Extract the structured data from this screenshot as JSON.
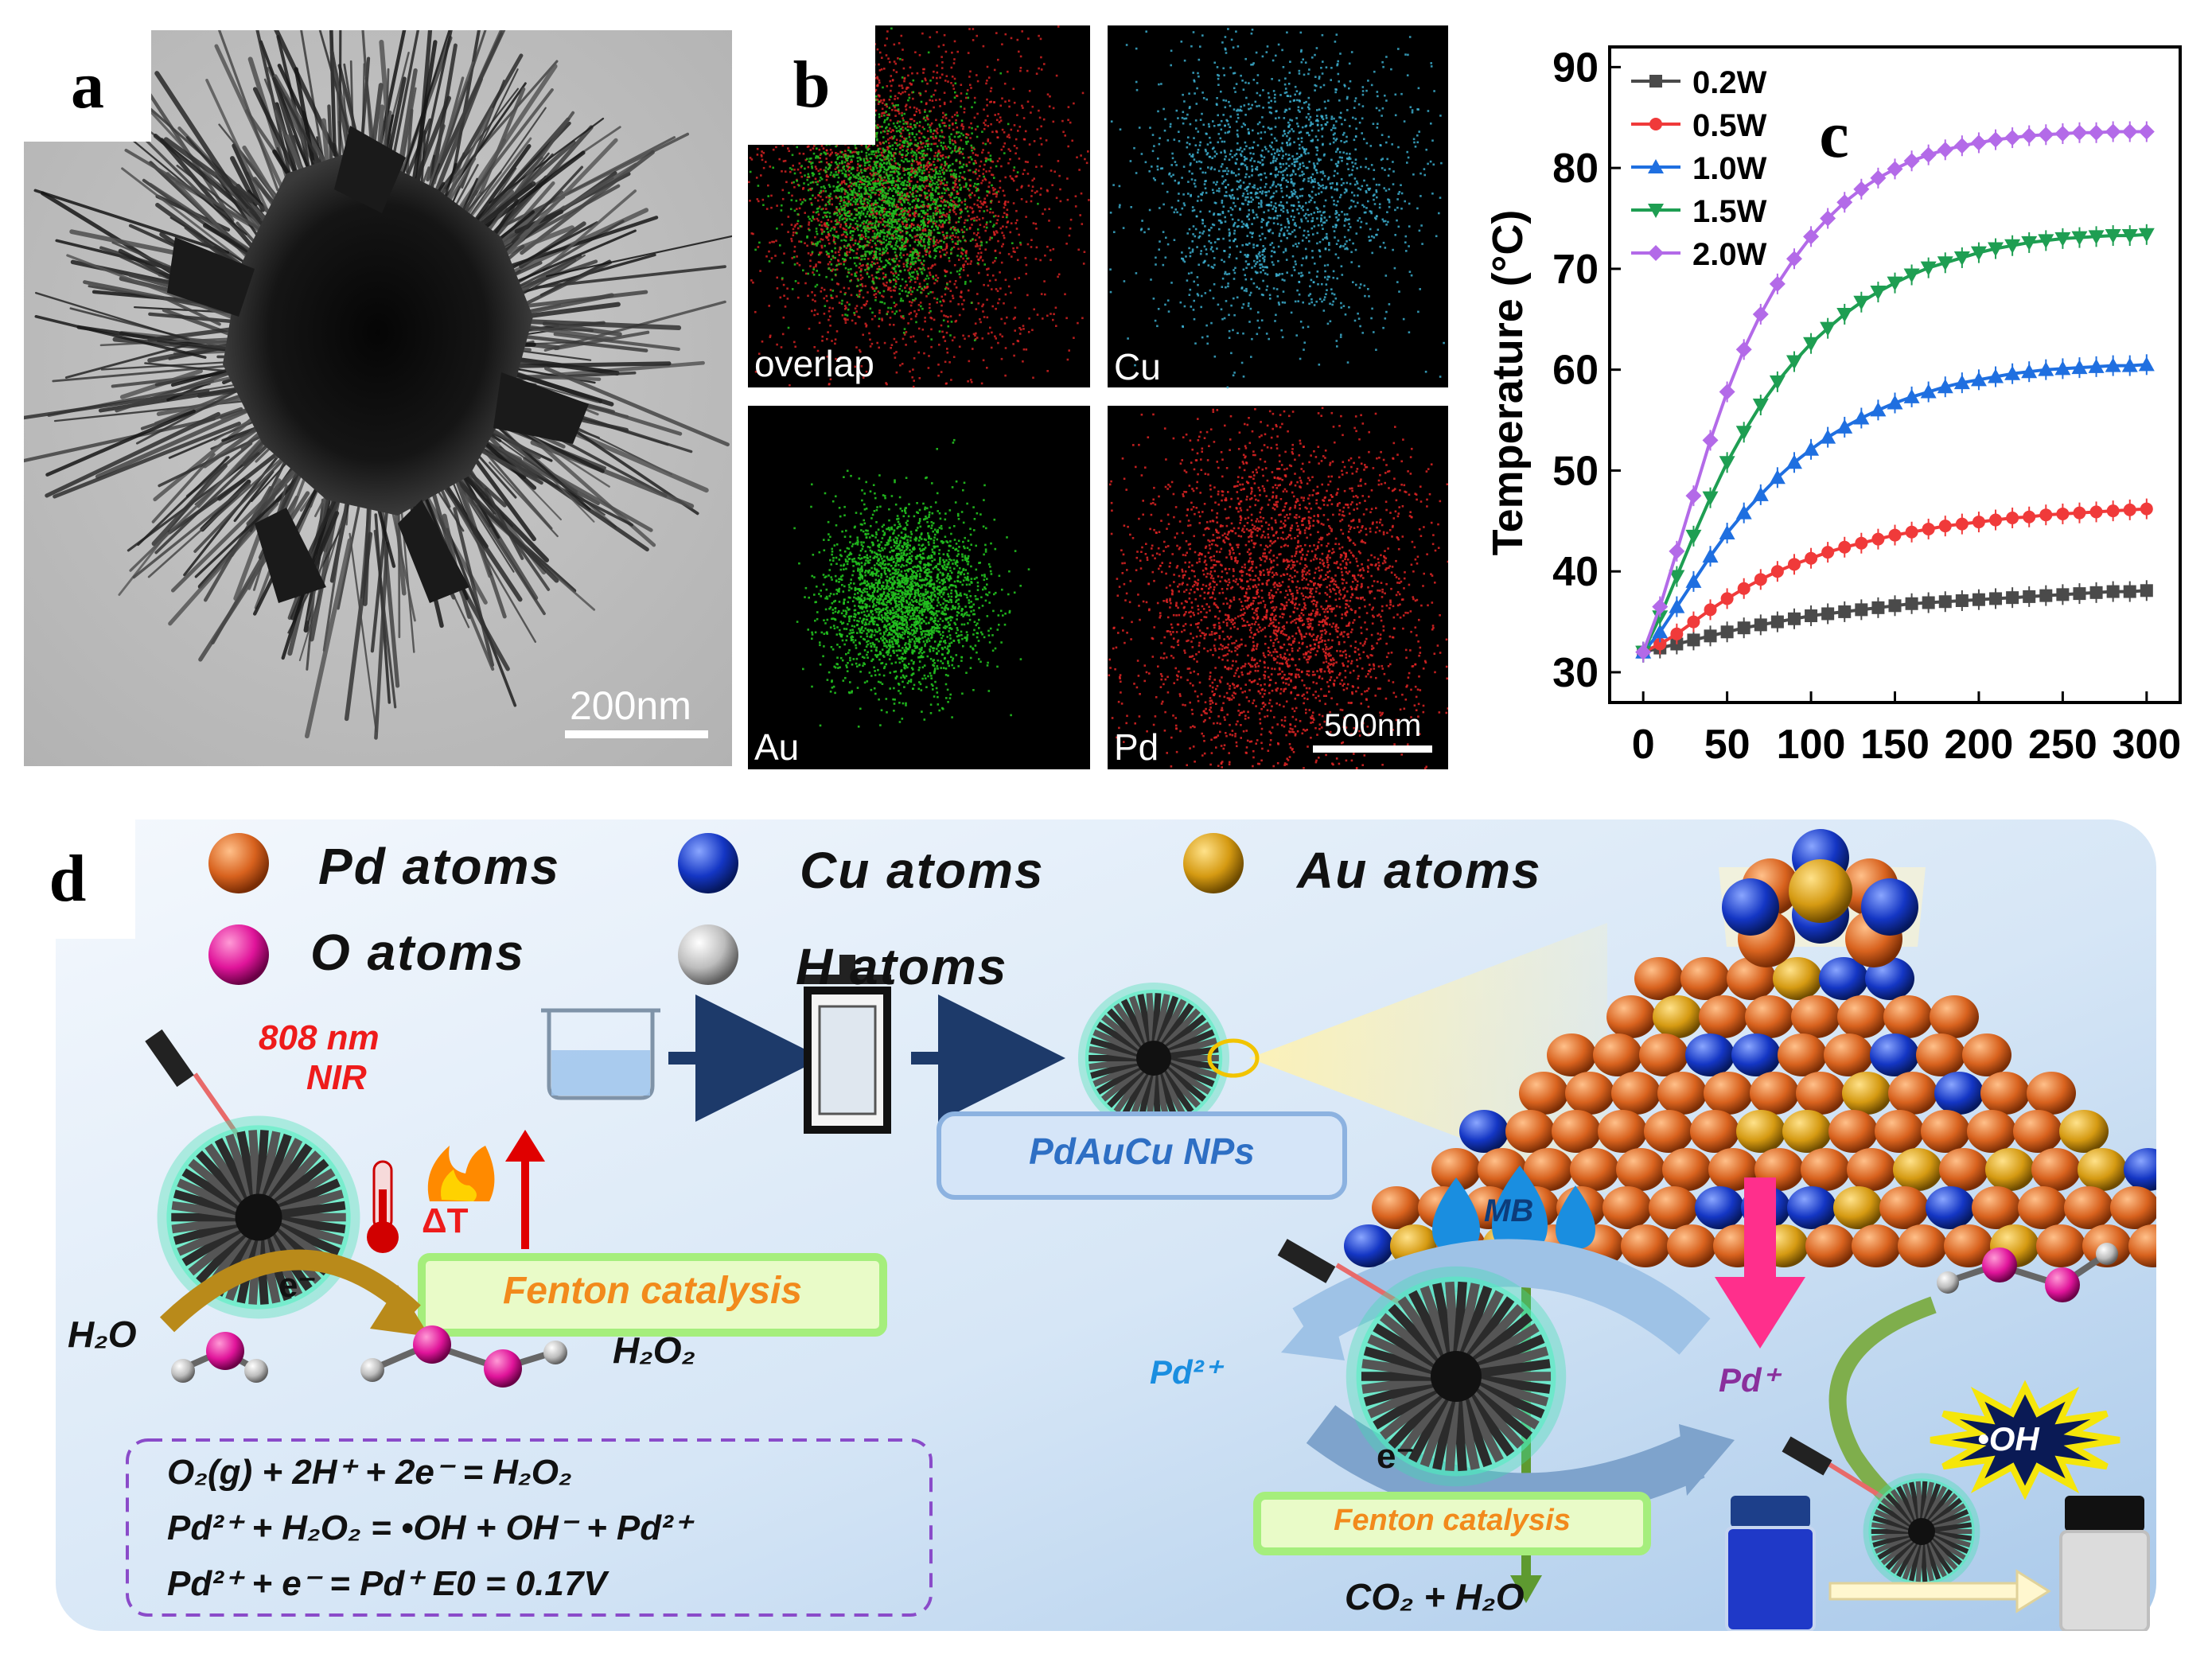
{
  "panel_a": {
    "label": "a",
    "scale_bar": "200nm"
  },
  "panel_b": {
    "label": "b",
    "maps": [
      {
        "name": "overlap"
      },
      {
        "name": "Cu"
      },
      {
        "name": "Au"
      },
      {
        "name": "Pd"
      }
    ],
    "scale_bar": "500nm",
    "colors": {
      "Cu": "#3fb6d8",
      "Au": "#22c11f",
      "Pd": "#e02424"
    }
  },
  "panel_c": {
    "label": "c"
  },
  "chart_data": {
    "type": "line",
    "title": "",
    "xlabel": "",
    "ylabel": "Temperature (°C)",
    "xlim": [
      -20,
      320
    ],
    "ylim": [
      27,
      92
    ],
    "x_ticks": [
      0,
      50,
      100,
      150,
      200,
      250,
      300
    ],
    "y_ticks": [
      30,
      40,
      50,
      60,
      70,
      80,
      90
    ],
    "x": [
      0,
      10,
      20,
      30,
      40,
      50,
      60,
      70,
      80,
      90,
      100,
      110,
      120,
      130,
      140,
      150,
      160,
      170,
      180,
      190,
      200,
      210,
      220,
      230,
      240,
      250,
      260,
      270,
      280,
      290,
      300
    ],
    "legend_position": "top-left",
    "series": [
      {
        "name": "0.2W",
        "color": "#4a4a4a",
        "marker": "square",
        "values": [
          32,
          32.4,
          32.8,
          33.2,
          33.6,
          34.0,
          34.4,
          34.7,
          35.0,
          35.3,
          35.6,
          35.8,
          36.0,
          36.2,
          36.4,
          36.6,
          36.8,
          36.9,
          37.0,
          37.1,
          37.2,
          37.3,
          37.4,
          37.5,
          37.6,
          37.7,
          37.8,
          37.9,
          38.0,
          38.0,
          38.1
        ]
      },
      {
        "name": "0.5W",
        "color": "#f03a3a",
        "marker": "circle",
        "values": [
          32,
          32.8,
          33.8,
          35.0,
          36.2,
          37.3,
          38.3,
          39.2,
          40.0,
          40.7,
          41.3,
          41.9,
          42.4,
          42.8,
          43.2,
          43.6,
          43.9,
          44.2,
          44.5,
          44.7,
          44.9,
          45.1,
          45.3,
          45.4,
          45.6,
          45.7,
          45.8,
          45.9,
          46.0,
          46.1,
          46.2
        ]
      },
      {
        "name": "1.0W",
        "color": "#1f6fe0",
        "marker": "triangle-up",
        "values": [
          32,
          34.0,
          36.5,
          39.0,
          41.5,
          43.8,
          45.8,
          47.6,
          49.3,
          50.8,
          52.1,
          53.3,
          54.3,
          55.2,
          56.0,
          56.7,
          57.3,
          57.8,
          58.3,
          58.7,
          59.0,
          59.3,
          59.6,
          59.8,
          60.0,
          60.1,
          60.2,
          60.3,
          60.4,
          60.4,
          60.5
        ]
      },
      {
        "name": "1.5W",
        "color": "#1e9e52",
        "marker": "triangle-down",
        "values": [
          32,
          35.5,
          39.5,
          43.5,
          47.3,
          50.8,
          53.8,
          56.5,
          58.8,
          60.8,
          62.6,
          64.1,
          65.5,
          66.7,
          67.7,
          68.6,
          69.4,
          70.1,
          70.6,
          71.1,
          71.6,
          72.0,
          72.3,
          72.6,
          72.8,
          73.0,
          73.1,
          73.2,
          73.3,
          73.3,
          73.4
        ]
      },
      {
        "name": "2.0W",
        "color": "#b36ae8",
        "marker": "diamond",
        "values": [
          32,
          36.5,
          42.0,
          47.5,
          53.0,
          57.8,
          62.0,
          65.5,
          68.5,
          71.0,
          73.2,
          75.0,
          76.6,
          77.9,
          79.0,
          79.9,
          80.7,
          81.3,
          81.8,
          82.2,
          82.5,
          82.8,
          83.0,
          83.2,
          83.3,
          83.4,
          83.5,
          83.5,
          83.6,
          83.6,
          83.6
        ]
      }
    ]
  },
  "panel_d": {
    "label": "d",
    "legend": [
      {
        "name": "Pd atoms",
        "color": "#d8621e"
      },
      {
        "name": "Cu atoms",
        "color": "#1436c4"
      },
      {
        "name": "Au atoms",
        "color": "#d59a12"
      },
      {
        "name": "O atoms",
        "color": "#e0149a"
      },
      {
        "name": "H atoms",
        "color": "#bdbdbd"
      }
    ],
    "laser": "808 nm",
    "laser_sub": "NIR",
    "delta_t": "ΔT",
    "fenton": "Fenton catalysis",
    "electron": "e⁻",
    "h2o": "H₂O",
    "h2o2": "H₂O₂",
    "nps": "PdAuCu NPs",
    "mb": "MB",
    "pd2": "Pd²⁺",
    "pd_plus": "Pd⁺",
    "oh_radical": "•OH",
    "electron2": "e⁻",
    "fenton2": "Fenton catalysis",
    "products": "CO₂ + H₂O",
    "equations": [
      "O₂(g) + 2H⁺ + 2e⁻ = H₂O₂",
      "Pd²⁺ + H₂O₂ = •OH + OH⁻ + Pd²⁺",
      "Pd²⁺ + e⁻ = Pd⁺ E0 = 0.17V"
    ]
  }
}
